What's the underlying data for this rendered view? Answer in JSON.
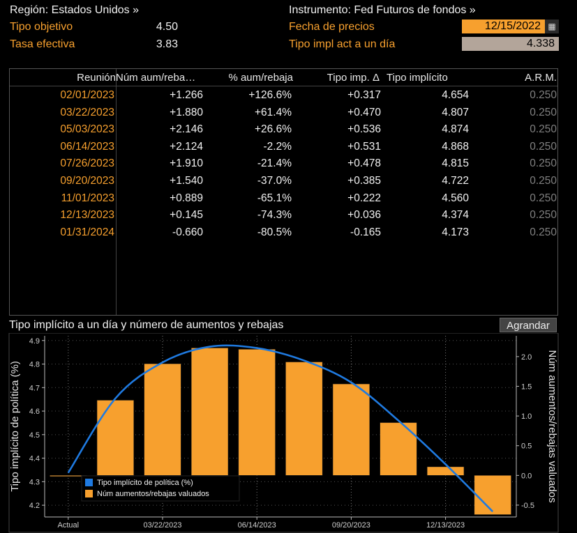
{
  "header": {
    "region_label": "Región: Estados Unidos »",
    "instrument_label": "Instrumento: Fed Futuros de fondos »",
    "target_rate_label": "Tipo objetivo",
    "target_rate_value": "4.50",
    "effective_rate_label": "Tasa efectiva",
    "effective_rate_value": "3.83",
    "price_date_label": "Fecha de precios",
    "price_date_value": "12/15/2022",
    "implied_overnight_label": "Tipo impl act a un día",
    "implied_overnight_value": "4.338"
  },
  "table": {
    "columns": [
      "Reunión",
      "Núm aum/reba…",
      "% aum/rebaja",
      "Tipo imp. Δ",
      "Tipo implícito",
      "A.R.M."
    ],
    "rows": [
      {
        "date": "02/01/2023",
        "num": "+1.266",
        "pct": "+126.6%",
        "delta": "+0.317",
        "implied": "4.654",
        "arm": "0.250"
      },
      {
        "date": "03/22/2023",
        "num": "+1.880",
        "pct": "+61.4%",
        "delta": "+0.470",
        "implied": "4.807",
        "arm": "0.250"
      },
      {
        "date": "05/03/2023",
        "num": "+2.146",
        "pct": "+26.6%",
        "delta": "+0.536",
        "implied": "4.874",
        "arm": "0.250"
      },
      {
        "date": "06/14/2023",
        "num": "+2.124",
        "pct": "-2.2%",
        "delta": "+0.531",
        "implied": "4.868",
        "arm": "0.250"
      },
      {
        "date": "07/26/2023",
        "num": "+1.910",
        "pct": "-21.4%",
        "delta": "+0.478",
        "implied": "4.815",
        "arm": "0.250"
      },
      {
        "date": "09/20/2023",
        "num": "+1.540",
        "pct": "-37.0%",
        "delta": "+0.385",
        "implied": "4.722",
        "arm": "0.250"
      },
      {
        "date": "11/01/2023",
        "num": "+0.889",
        "pct": "-65.1%",
        "delta": "+0.222",
        "implied": "4.560",
        "arm": "0.250"
      },
      {
        "date": "12/13/2023",
        "num": "+0.145",
        "pct": "-74.3%",
        "delta": "+0.036",
        "implied": "4.374",
        "arm": "0.250"
      },
      {
        "date": "01/31/2024",
        "num": "-0.660",
        "pct": "-80.5%",
        "delta": "-0.165",
        "implied": "4.173",
        "arm": "0.250"
      }
    ]
  },
  "chart_section": {
    "title": "Tipo implícito a un día y número de aumentos y rebajas",
    "enlarge_button": "Agrandar"
  },
  "colors": {
    "accent_orange": "#f7a02e",
    "line_blue": "#1f7ae0"
  },
  "chart_data": {
    "type": "bar",
    "categories": [
      "Actual",
      "02/01/2023",
      "03/22/2023",
      "05/03/2023",
      "06/14/2023",
      "07/26/2023",
      "09/20/2023",
      "11/01/2023",
      "12/13/2023",
      "01/31/2024"
    ],
    "x_tick_labels": [
      "Actual",
      "03/22/2023",
      "06/14/2023",
      "09/20/2023",
      "12/13/2023"
    ],
    "series": [
      {
        "name": "Núm aumentos/rebajas valuados",
        "type": "bar",
        "axis": "right",
        "values": [
          0.0,
          1.266,
          1.88,
          2.146,
          2.124,
          1.91,
          1.54,
          0.889,
          0.145,
          -0.66
        ]
      },
      {
        "name": "Tipo implícito de política (%)",
        "type": "line",
        "axis": "left",
        "values": [
          4.338,
          4.654,
          4.807,
          4.874,
          4.868,
          4.815,
          4.722,
          4.56,
          4.374,
          4.173
        ]
      }
    ],
    "ylabel": "Tipo implícito de política (%)",
    "y2label": "Núm aumentos/rebajas valuados",
    "ylim": [
      4.15,
      4.92
    ],
    "y2lim": [
      -0.7,
      2.35
    ],
    "y_ticks": [
      "4.2",
      "4.3",
      "4.4",
      "4.5",
      "4.6",
      "4.7",
      "4.8",
      "4.9"
    ],
    "y2_ticks": [
      "-0.5",
      "0.0",
      "0.5",
      "1.0",
      "1.5",
      "2.0"
    ],
    "legend_position": "bottom-left",
    "grid": true
  }
}
